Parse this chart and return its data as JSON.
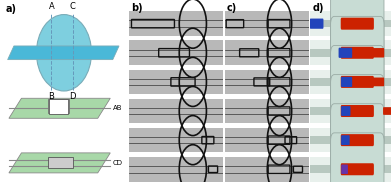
{
  "panel_labels": [
    "a)",
    "b)",
    "c)",
    "d)"
  ],
  "panel_label_color": "#000000",
  "panel_label_fontsize": 7,
  "background_color": "#ffffff",
  "panel_a": {
    "circle_color": "#7ecfdf",
    "circle_edge": "#7aacb8",
    "channel_color": "#4ab8d8",
    "channel_edge": "#7aacb8",
    "trap_bg": "#a8d8a8",
    "trap_edge": "#888888",
    "dashed_color": "#6699bb",
    "label_AB": "AB",
    "label_CD": "CD",
    "fontsize_abcd": 6
  },
  "panel_b": {
    "bg": "#c8c8c8",
    "frame_bg": "#b8b8b8",
    "channel_line": "#444444",
    "circle_ec": "#111111",
    "rect_ec": "#111111"
  },
  "panel_c": {
    "bg": "#c8c8c8",
    "frame_bg": "#b8b8b8",
    "channel_line": "#444444",
    "circle_ec": "#111111",
    "rect_ec": "#111111"
  },
  "panel_d": {
    "bg_speckle": "#e8f0ec",
    "channel_color": "#b8c8c0",
    "oval_color": "#c8dcd4",
    "oval_ec": "#99aaa4",
    "droplet_red": "#cc2200",
    "droplet_blue": "#2244bb",
    "droplet_mixed": "#6633aa"
  }
}
